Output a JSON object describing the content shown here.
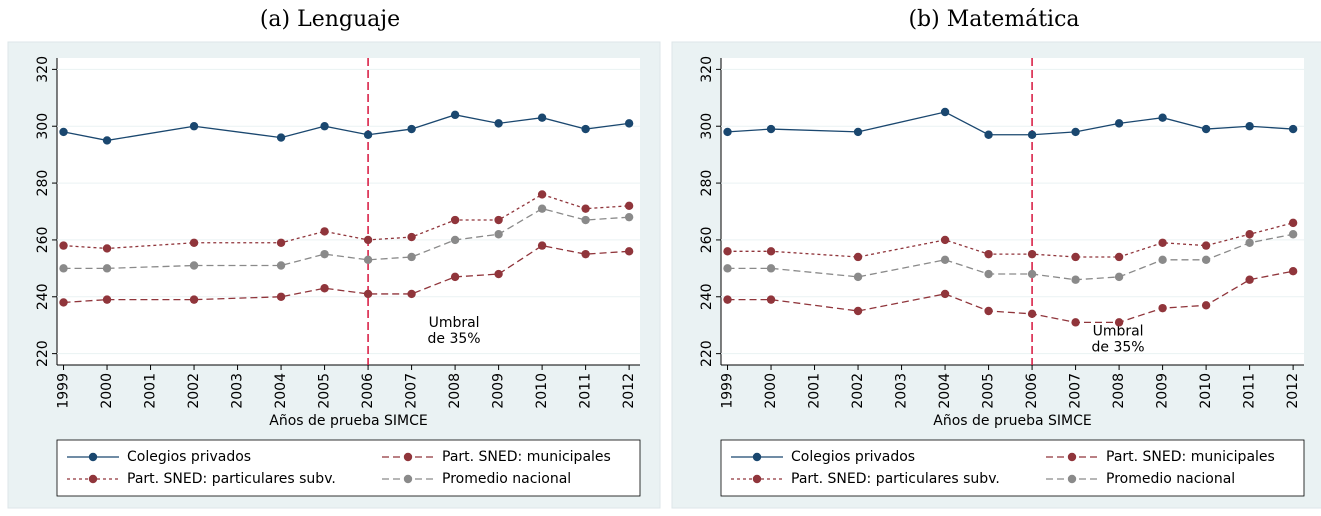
{
  "chart_data": [
    {
      "type": "line",
      "title": "(a) Lenguaje",
      "x_label": "Años de prueba SIMCE",
      "x": [
        1999,
        2000,
        2002,
        2004,
        2005,
        2006,
        2007,
        2008,
        2009,
        2010,
        2011,
        2012
      ],
      "series": [
        {
          "name": "Colegios privados",
          "color": "#1a476f",
          "dash": "solid",
          "values": [
            298,
            295,
            300,
            296,
            300,
            297,
            299,
            304,
            301,
            303,
            299,
            301
          ]
        },
        {
          "name": "Part. SNED: municipales",
          "color": "#90353b",
          "dash": "long",
          "values": [
            238,
            239,
            239,
            240,
            243,
            241,
            241,
            247,
            248,
            258,
            255,
            256
          ]
        },
        {
          "name": "Part. SNED: particulares subv.",
          "color": "#90353b",
          "dash": "short",
          "values": [
            258,
            257,
            259,
            259,
            263,
            260,
            261,
            267,
            267,
            276,
            271,
            272
          ]
        },
        {
          "name": "Promedio nacional",
          "color": "#8a8a8a",
          "dash": "long",
          "values": [
            250,
            250,
            251,
            251,
            255,
            253,
            254,
            260,
            262,
            271,
            267,
            268
          ]
        }
      ],
      "xlim": [
        1998.85,
        2012.25
      ],
      "xticks": [
        1999,
        2000,
        2001,
        2002,
        2003,
        2004,
        2005,
        2006,
        2007,
        2008,
        2009,
        2010,
        2011,
        2012
      ],
      "ylim": [
        216,
        324
      ],
      "yticks": [
        220,
        240,
        260,
        280,
        300,
        320
      ],
      "grid": true,
      "vline": 2006,
      "vline_color": "#d6143c",
      "annotation": [
        "Umbral",
        "de 35%"
      ],
      "annotation_y": 228
    },
    {
      "type": "line",
      "title": "(b) Matemática",
      "x_label": "Años de prueba SIMCE",
      "x": [
        1999,
        2000,
        2002,
        2004,
        2005,
        2006,
        2007,
        2008,
        2009,
        2010,
        2011,
        2012
      ],
      "series": [
        {
          "name": "Colegios privados",
          "color": "#1a476f",
          "dash": "solid",
          "values": [
            298,
            299,
            298,
            305,
            297,
            297,
            298,
            301,
            303,
            299,
            300,
            299
          ]
        },
        {
          "name": "Part. SNED: municipales",
          "color": "#90353b",
          "dash": "long",
          "values": [
            239,
            239,
            235,
            241,
            235,
            234,
            231,
            231,
            236,
            237,
            246,
            249
          ]
        },
        {
          "name": "Part. SNED: particulares subv.",
          "color": "#90353b",
          "dash": "short",
          "values": [
            256,
            256,
            254,
            260,
            255,
            255,
            254,
            254,
            259,
            258,
            262,
            266
          ]
        },
        {
          "name": "Promedio nacional",
          "color": "#8a8a8a",
          "dash": "long",
          "values": [
            250,
            250,
            247,
            253,
            248,
            248,
            246,
            247,
            253,
            253,
            259,
            262
          ]
        }
      ],
      "xlim": [
        1998.85,
        2012.25
      ],
      "xticks": [
        1999,
        2000,
        2001,
        2002,
        2003,
        2004,
        2005,
        2006,
        2007,
        2008,
        2009,
        2010,
        2011,
        2012
      ],
      "ylim": [
        216,
        324
      ],
      "yticks": [
        220,
        240,
        260,
        280,
        300,
        320
      ],
      "grid": true,
      "vline": 2006,
      "vline_color": "#d6143c",
      "annotation": [
        "Umbral",
        "de 35%"
      ],
      "annotation_y": 225
    }
  ]
}
